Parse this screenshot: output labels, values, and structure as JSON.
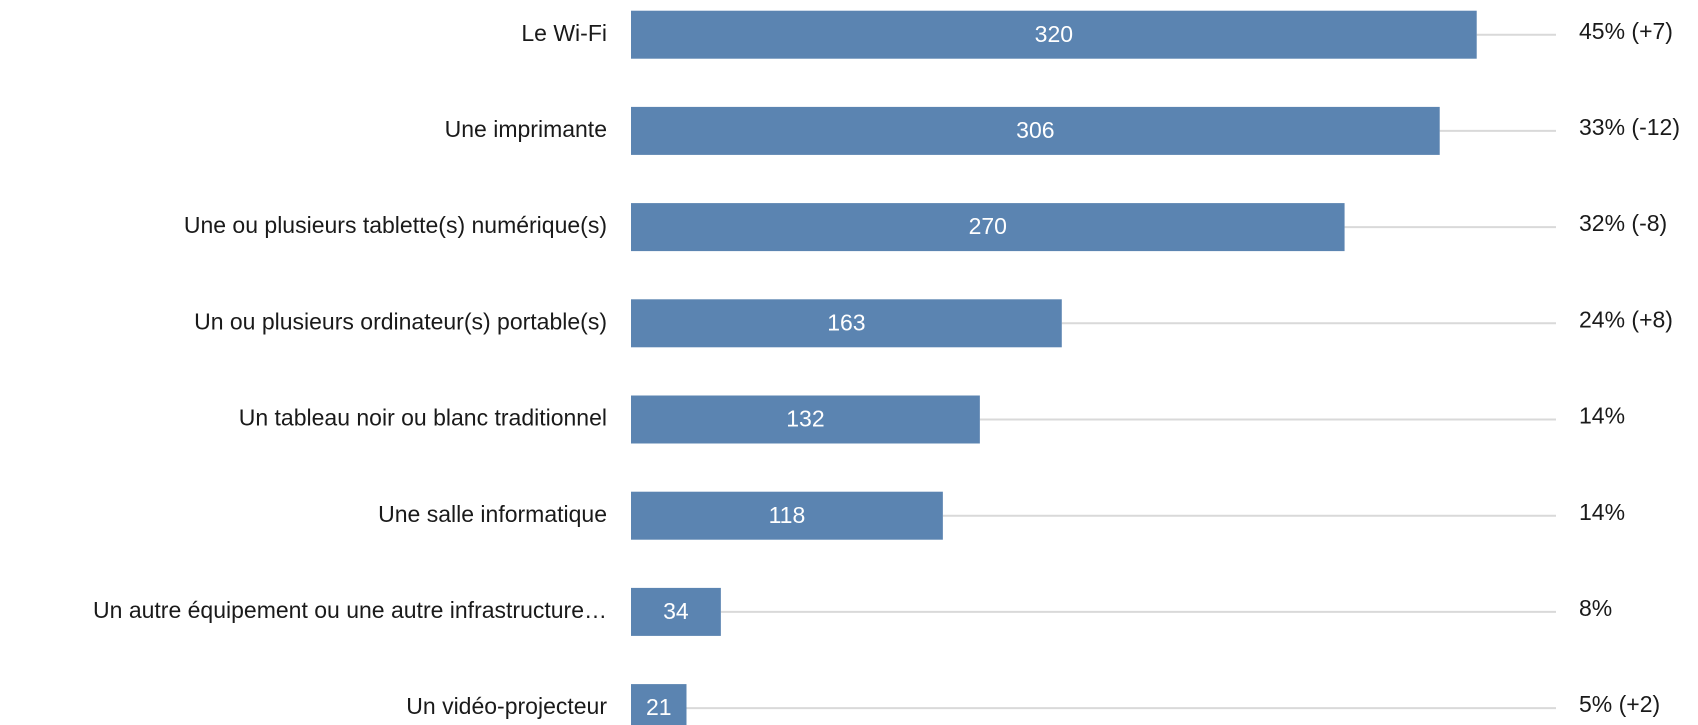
{
  "chart_data": {
    "type": "bar",
    "orientation": "horizontal",
    "categories": [
      "Le Wi-Fi",
      "Une imprimante",
      "Une ou plusieurs tablette(s) numérique(s)",
      "Un ou plusieurs ordinateur(s) portable(s)",
      "Un tableau noir ou blanc traditionnel",
      "Une salle informatique",
      "Un autre équipement ou une autre infrastructure…",
      "Un vidéo-projecteur"
    ],
    "values": [
      320,
      306,
      270,
      163,
      132,
      118,
      34,
      21
    ],
    "annotations": [
      "45% (+7)",
      "33% (-12)",
      "32% (-8)",
      "24% (+8)",
      "14%",
      "14%",
      "8%",
      "5% (+2)"
    ],
    "color": "#5b84b1",
    "xlim": [
      0,
      350
    ]
  }
}
